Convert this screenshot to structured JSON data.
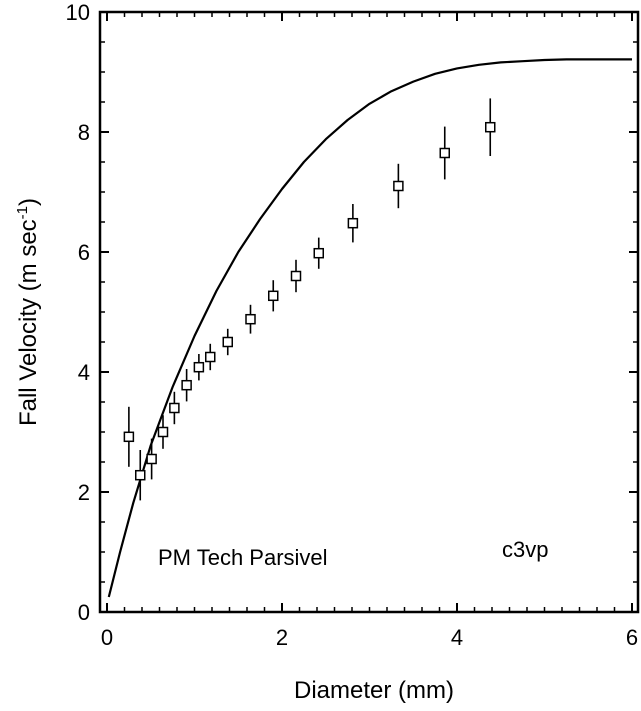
{
  "chart_data": {
    "type": "scatter",
    "xlabel": "Diameter (mm)",
    "ylabel": "Fall Velocity (m sec",
    "ylabel_superscript": "-1",
    "ylabel_close": ")",
    "xlim": [
      0,
      6
    ],
    "ylim": [
      0,
      10
    ],
    "x_ticks": [
      "0",
      "2",
      "4",
      "6"
    ],
    "y_ticks": [
      "0",
      "2",
      "4",
      "6",
      "8",
      "10"
    ],
    "grid": false,
    "legend": null,
    "annotations": [
      {
        "text": "PM Tech Parsivel"
      },
      {
        "text": "c3vp"
      }
    ],
    "series": [
      {
        "type": "points-with-error-bars",
        "points": [
          {
            "x": 0.25,
            "y": 2.92,
            "err": 0.5
          },
          {
            "x": 0.38,
            "y": 2.28,
            "err": 0.42
          },
          {
            "x": 0.51,
            "y": 2.55,
            "err": 0.34
          },
          {
            "x": 0.64,
            "y": 3.0,
            "err": 0.28
          },
          {
            "x": 0.77,
            "y": 3.4,
            "err": 0.27
          },
          {
            "x": 0.91,
            "y": 3.78,
            "err": 0.27
          },
          {
            "x": 1.05,
            "y": 4.08,
            "err": 0.22
          },
          {
            "x": 1.18,
            "y": 4.25,
            "err": 0.22
          },
          {
            "x": 1.38,
            "y": 4.5,
            "err": 0.22
          },
          {
            "x": 1.64,
            "y": 4.88,
            "err": 0.24
          },
          {
            "x": 1.9,
            "y": 5.27,
            "err": 0.26
          },
          {
            "x": 2.16,
            "y": 5.6,
            "err": 0.27
          },
          {
            "x": 2.42,
            "y": 5.98,
            "err": 0.26
          },
          {
            "x": 2.81,
            "y": 6.48,
            "err": 0.32
          },
          {
            "x": 3.33,
            "y": 7.1,
            "err": 0.37
          },
          {
            "x": 3.86,
            "y": 7.65,
            "err": 0.44
          },
          {
            "x": 4.38,
            "y": 8.08,
            "err": 0.48
          }
        ]
      },
      {
        "type": "curve",
        "x": [
          0.02,
          0.15,
          0.3,
          0.5,
          0.75,
          1.0,
          1.25,
          1.5,
          1.75,
          2.0,
          2.25,
          2.5,
          2.75,
          3.0,
          3.25,
          3.5,
          3.75,
          4.0,
          4.25,
          4.5,
          4.75,
          5.0,
          5.25,
          5.5,
          5.75,
          6.0
        ],
        "y": [
          0.25,
          1.0,
          1.82,
          2.78,
          3.75,
          4.6,
          5.35,
          6.0,
          6.55,
          7.05,
          7.5,
          7.88,
          8.2,
          8.47,
          8.68,
          8.84,
          8.97,
          9.06,
          9.12,
          9.16,
          9.18,
          9.2,
          9.21,
          9.21,
          9.21,
          9.21
        ]
      }
    ]
  }
}
